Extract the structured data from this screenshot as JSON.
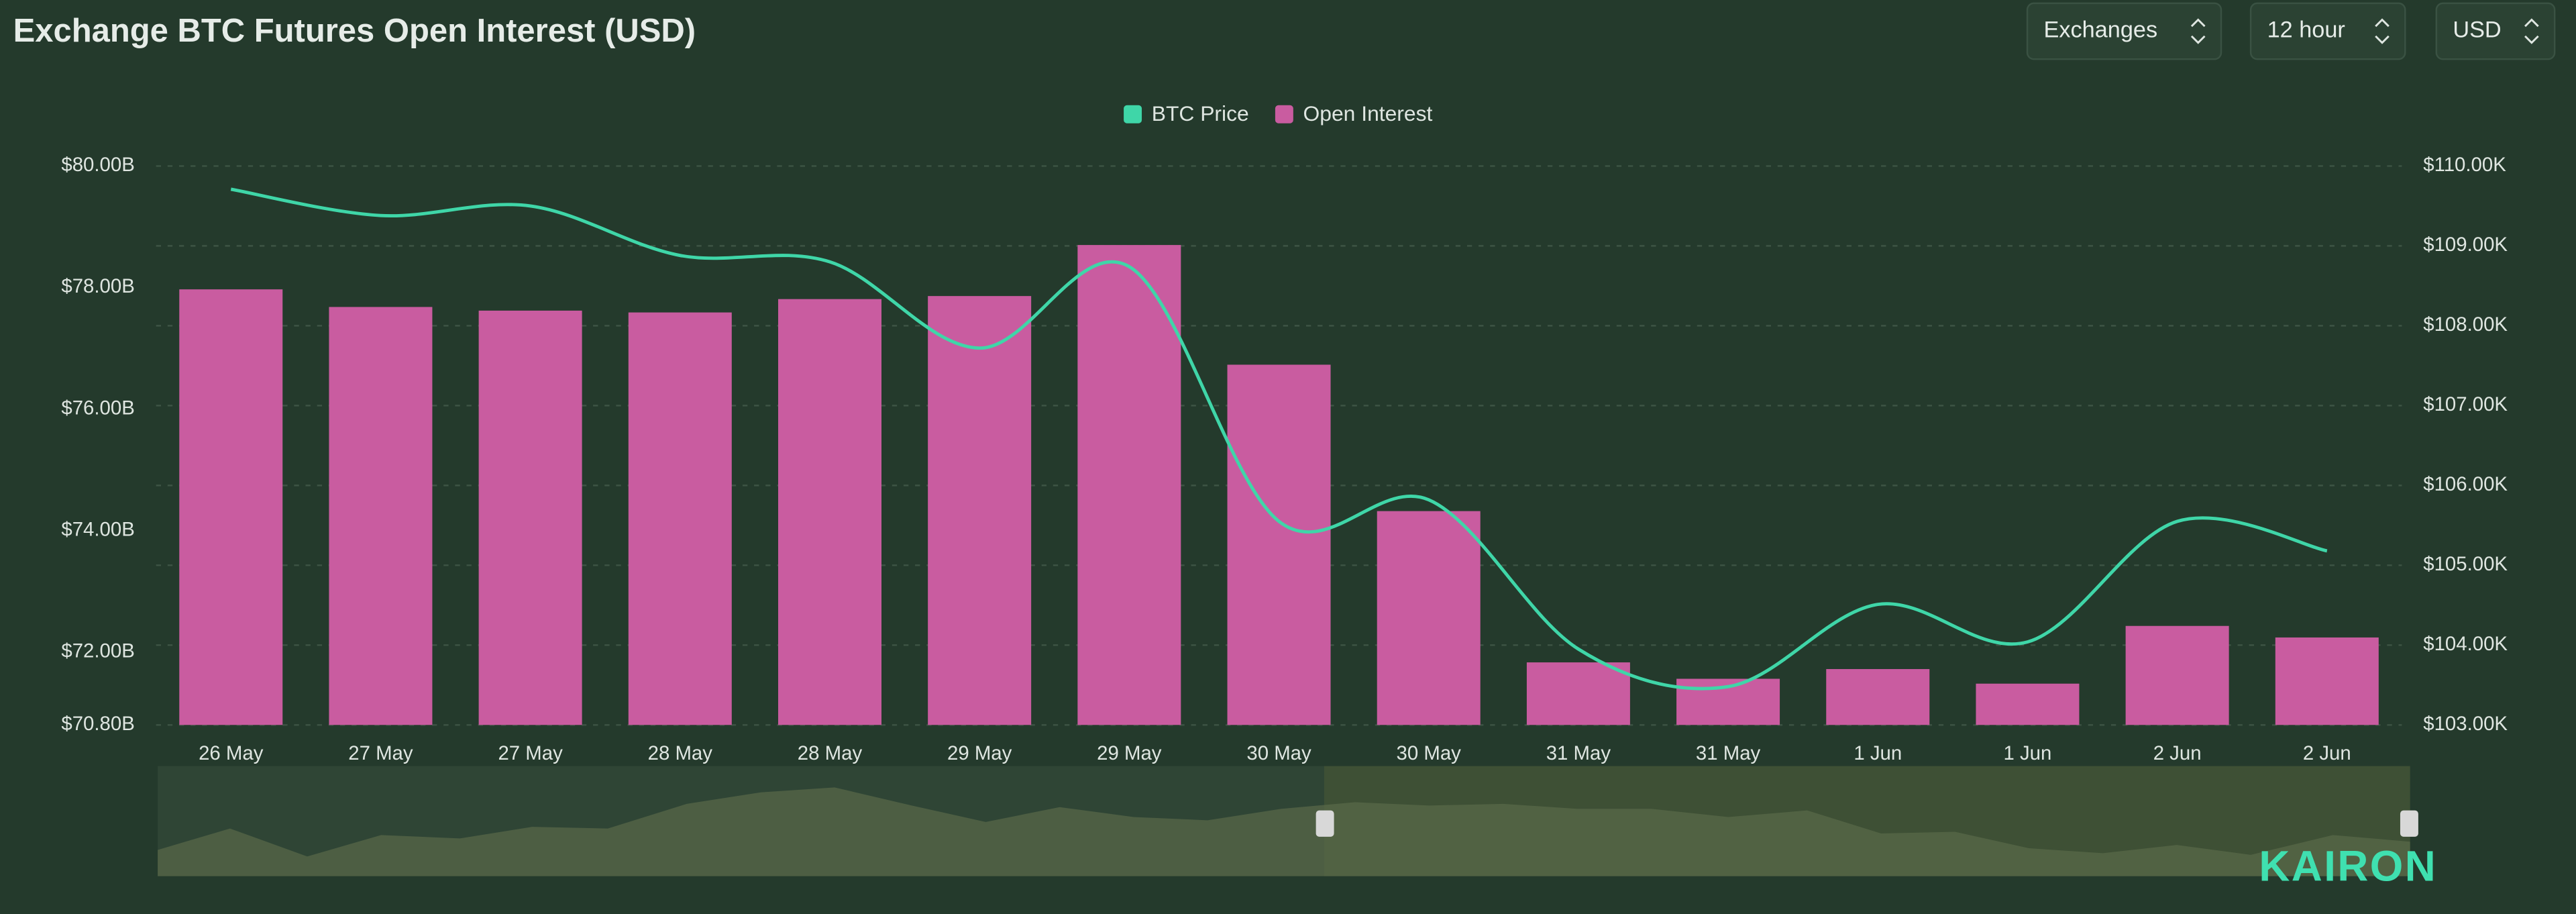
{
  "chart_data": {
    "type": "bar",
    "title": "Exchange BTC Futures Open Interest (USD)",
    "controls": [
      "Exchanges",
      "12 hour",
      "USD"
    ],
    "logo": "KAIRON",
    "categories": [
      "26 May",
      "27 May",
      "27 May",
      "28 May",
      "28 May",
      "29 May",
      "29 May",
      "30 May",
      "30 May",
      "31 May",
      "31 May",
      "1 Jun",
      "1 Jun",
      "2 Jun",
      "2 Jun"
    ],
    "series": [
      {
        "name": "BTC Price",
        "color": "#3fd6a8",
        "type": "line",
        "axis": "y2",
        "values": [
          109.71,
          109.38,
          109.5,
          108.88,
          108.8,
          107.72,
          108.74,
          105.55,
          105.82,
          103.95,
          103.48,
          104.51,
          104.04,
          105.55,
          105.18
        ]
      },
      {
        "name": "Open Interest",
        "color": "#c95ca0",
        "type": "bar",
        "values": [
          77.97,
          77.68,
          77.62,
          77.59,
          77.81,
          77.86,
          78.7,
          76.73,
          74.32,
          71.83,
          71.56,
          71.72,
          71.48,
          72.43,
          72.24
        ]
      }
    ],
    "ylim": [
      70.8,
      80
    ],
    "yticks": [
      {
        "value": 70.8,
        "label": "$70.80B"
      },
      {
        "value": 72,
        "label": "$72.00B"
      },
      {
        "value": 74,
        "label": "$74.00B"
      },
      {
        "value": 76,
        "label": "$76.00B"
      },
      {
        "value": 78,
        "label": "$78.00B"
      },
      {
        "value": 80,
        "label": "$80.00B"
      }
    ],
    "y2lim": [
      103,
      110
    ],
    "y2ticks": [
      {
        "value": 103,
        "label": "$103.00K"
      },
      {
        "value": 104,
        "label": "$104.00K"
      },
      {
        "value": 105,
        "label": "$105.00K"
      },
      {
        "value": 106,
        "label": "$106.00K"
      },
      {
        "value": 107,
        "label": "$107.00K"
      },
      {
        "value": 108,
        "label": "$108.00K"
      },
      {
        "value": 109,
        "label": "$109.00K"
      },
      {
        "value": 110,
        "label": "$110.00K"
      }
    ],
    "grid": true,
    "legend": "top"
  }
}
